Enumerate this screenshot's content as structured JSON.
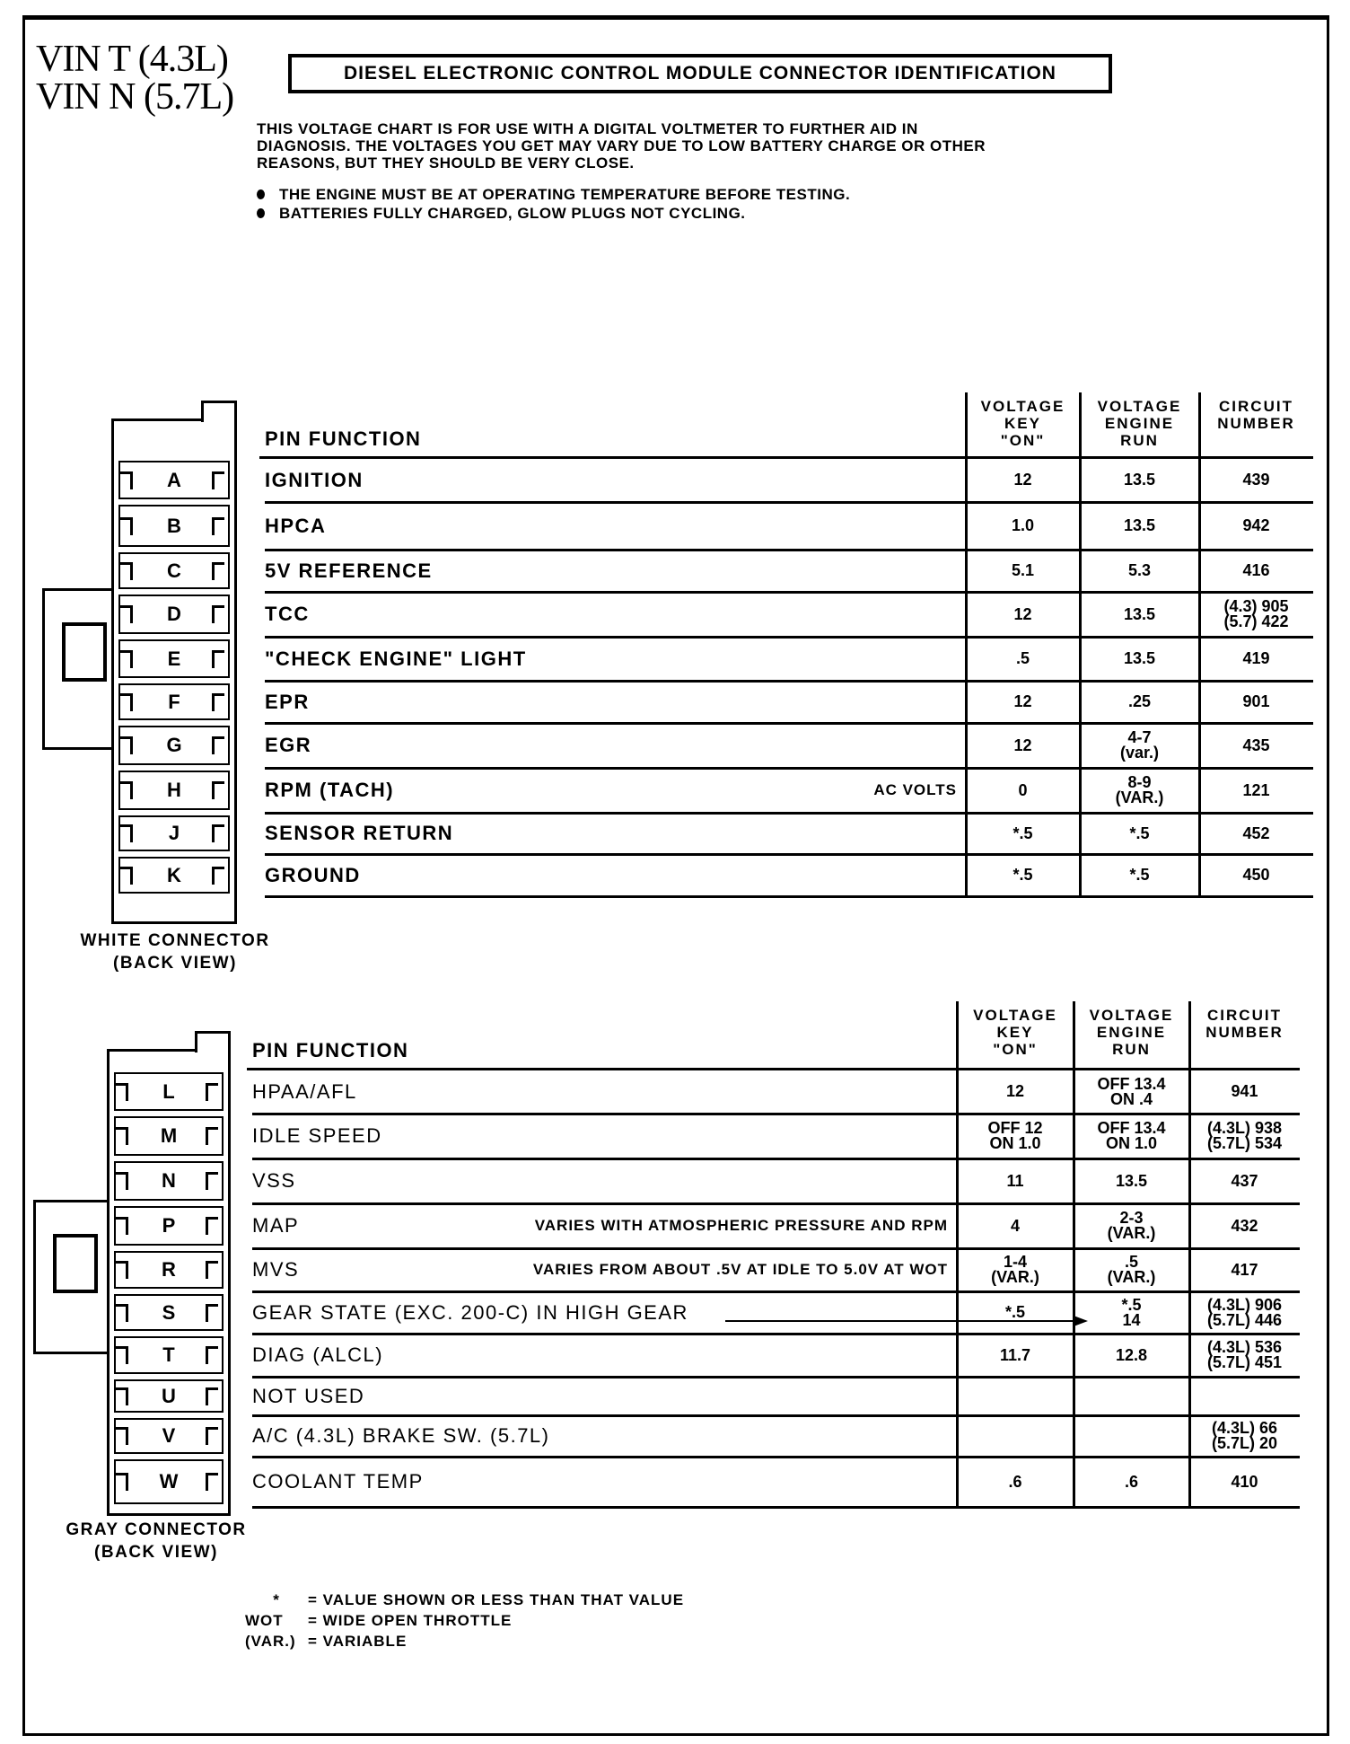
{
  "header": {
    "vin_lines": [
      "VIN T (4.3L)",
      "VIN N (5.7L)"
    ],
    "title": "DIESEL ELECTRONIC CONTROL MODULE CONNECTOR IDENTIFICATION",
    "intro_lines": [
      "THIS VOLTAGE CHART IS FOR USE WITH A DIGITAL VOLTMETER TO FURTHER AID IN",
      "DIAGNOSIS. THE VOLTAGES YOU GET MAY VARY DUE TO LOW BATTERY CHARGE OR OTHER",
      "REASONS, BUT THEY SHOULD BE VERY CLOSE."
    ],
    "bullets": [
      "THE ENGINE MUST BE AT OPERATING TEMPERATURE BEFORE TESTING.",
      "BATTERIES FULLY CHARGED, GLOW PLUGS NOT CYCLING."
    ]
  },
  "columns": {
    "pin_function": "PIN FUNCTION",
    "key_on": [
      "VOLTAGE",
      "KEY",
      "\"ON\""
    ],
    "engine_run": [
      "VOLTAGE",
      "ENGINE",
      "RUN"
    ],
    "circuit": [
      "CIRCUIT",
      "NUMBER"
    ]
  },
  "white_connector": {
    "caption": [
      "WHITE CONNECTOR",
      "(BACK VIEW)"
    ],
    "rows": [
      {
        "pin": "A",
        "function": "IGNITION",
        "note": "",
        "key_on": [
          "12"
        ],
        "engine_run": [
          "13.5"
        ],
        "circuit": [
          "439"
        ]
      },
      {
        "pin": "B",
        "function": "HPCA",
        "note": "",
        "key_on": [
          "1.0"
        ],
        "engine_run": [
          "13.5"
        ],
        "circuit": [
          "942"
        ]
      },
      {
        "pin": "C",
        "function": "5V REFERENCE",
        "note": "",
        "key_on": [
          "5.1"
        ],
        "engine_run": [
          "5.3"
        ],
        "circuit": [
          "416"
        ]
      },
      {
        "pin": "D",
        "function": "TCC",
        "note": "",
        "key_on": [
          "12"
        ],
        "engine_run": [
          "13.5"
        ],
        "circuit": [
          "(4.3) 905",
          "(5.7) 422"
        ]
      },
      {
        "pin": "E",
        "function": "\"CHECK ENGINE\" LIGHT",
        "note": "",
        "key_on": [
          ".5"
        ],
        "engine_run": [
          "13.5"
        ],
        "circuit": [
          "419"
        ]
      },
      {
        "pin": "F",
        "function": "EPR",
        "note": "",
        "key_on": [
          "12"
        ],
        "engine_run": [
          ".25"
        ],
        "circuit": [
          "901"
        ]
      },
      {
        "pin": "G",
        "function": "EGR",
        "note": "",
        "key_on": [
          "12"
        ],
        "engine_run": [
          "4-7",
          "(var.)"
        ],
        "circuit": [
          "435"
        ]
      },
      {
        "pin": "H",
        "function": "RPM (TACH)",
        "note": "AC VOLTS",
        "key_on": [
          "0"
        ],
        "engine_run": [
          "8-9",
          "(VAR.)"
        ],
        "circuit": [
          "121"
        ]
      },
      {
        "pin": "J",
        "function": "SENSOR RETURN",
        "note": "",
        "key_on": [
          "*.5"
        ],
        "engine_run": [
          "*.5"
        ],
        "circuit": [
          "452"
        ]
      },
      {
        "pin": "K",
        "function": "GROUND",
        "note": "",
        "key_on": [
          "*.5"
        ],
        "engine_run": [
          "*.5"
        ],
        "circuit": [
          "450"
        ]
      }
    ]
  },
  "gray_connector": {
    "caption": [
      "GRAY CONNECTOR",
      "(BACK VIEW)"
    ],
    "rows": [
      {
        "pin": "L",
        "function": "HPAA/AFL",
        "note": "",
        "key_on": [
          "12"
        ],
        "engine_run": [
          "OFF 13.4",
          "ON .4"
        ],
        "circuit": [
          "941"
        ]
      },
      {
        "pin": "M",
        "function": "IDLE SPEED",
        "note": "",
        "key_on": [
          "OFF 12",
          "ON 1.0"
        ],
        "engine_run": [
          "OFF 13.4",
          "ON 1.0"
        ],
        "circuit": [
          "(4.3L) 938",
          "(5.7L) 534"
        ]
      },
      {
        "pin": "N",
        "function": "VSS",
        "note": "",
        "key_on": [
          "11"
        ],
        "engine_run": [
          "13.5"
        ],
        "circuit": [
          "437"
        ]
      },
      {
        "pin": "P",
        "function": "MAP",
        "note": "VARIES WITH ATMOSPHERIC PRESSURE AND RPM",
        "key_on": [
          "4"
        ],
        "engine_run": [
          "2-3",
          "(VAR.)"
        ],
        "circuit": [
          "432"
        ]
      },
      {
        "pin": "R",
        "function": "MVS",
        "note": "VARIES FROM ABOUT .5V AT IDLE TO 5.0V AT WOT",
        "key_on": [
          "1-4",
          "(VAR.)"
        ],
        "engine_run": [
          ".5",
          "(VAR.)"
        ],
        "circuit": [
          "417"
        ]
      },
      {
        "pin": "S",
        "function": "GEAR STATE (EXC. 200-C) IN HIGH GEAR",
        "note": "",
        "key_on": [
          "*.5"
        ],
        "engine_run": [
          "*.5",
          "14"
        ],
        "circuit": [
          "(4.3L) 906",
          "(5.7L) 446"
        ]
      },
      {
        "pin": "T",
        "function": "DIAG (ALCL)",
        "note": "",
        "key_on": [
          "11.7"
        ],
        "engine_run": [
          "12.8"
        ],
        "circuit": [
          "(4.3L) 536",
          "(5.7L) 451"
        ]
      },
      {
        "pin": "U",
        "function": "NOT USED",
        "note": "",
        "key_on": [
          ""
        ],
        "engine_run": [
          ""
        ],
        "circuit": [
          ""
        ]
      },
      {
        "pin": "V",
        "function": "A/C (4.3L) BRAKE SW. (5.7L)",
        "note": "",
        "key_on": [
          ""
        ],
        "engine_run": [
          ""
        ],
        "circuit": [
          "(4.3L) 66",
          "(5.7L) 20"
        ]
      },
      {
        "pin": "W",
        "function": "COOLANT TEMP",
        "note": "",
        "key_on": [
          ".6"
        ],
        "engine_run": [
          ".6"
        ],
        "circuit": [
          "410"
        ]
      }
    ]
  },
  "legend": [
    {
      "symbol": "*",
      "text": "= VALUE SHOWN OR LESS THAN THAT VALUE"
    },
    {
      "symbol": "WOT",
      "text": "= WIDE OPEN THROTTLE"
    },
    {
      "symbol": "(VAR.)",
      "text": "= VARIABLE"
    }
  ]
}
